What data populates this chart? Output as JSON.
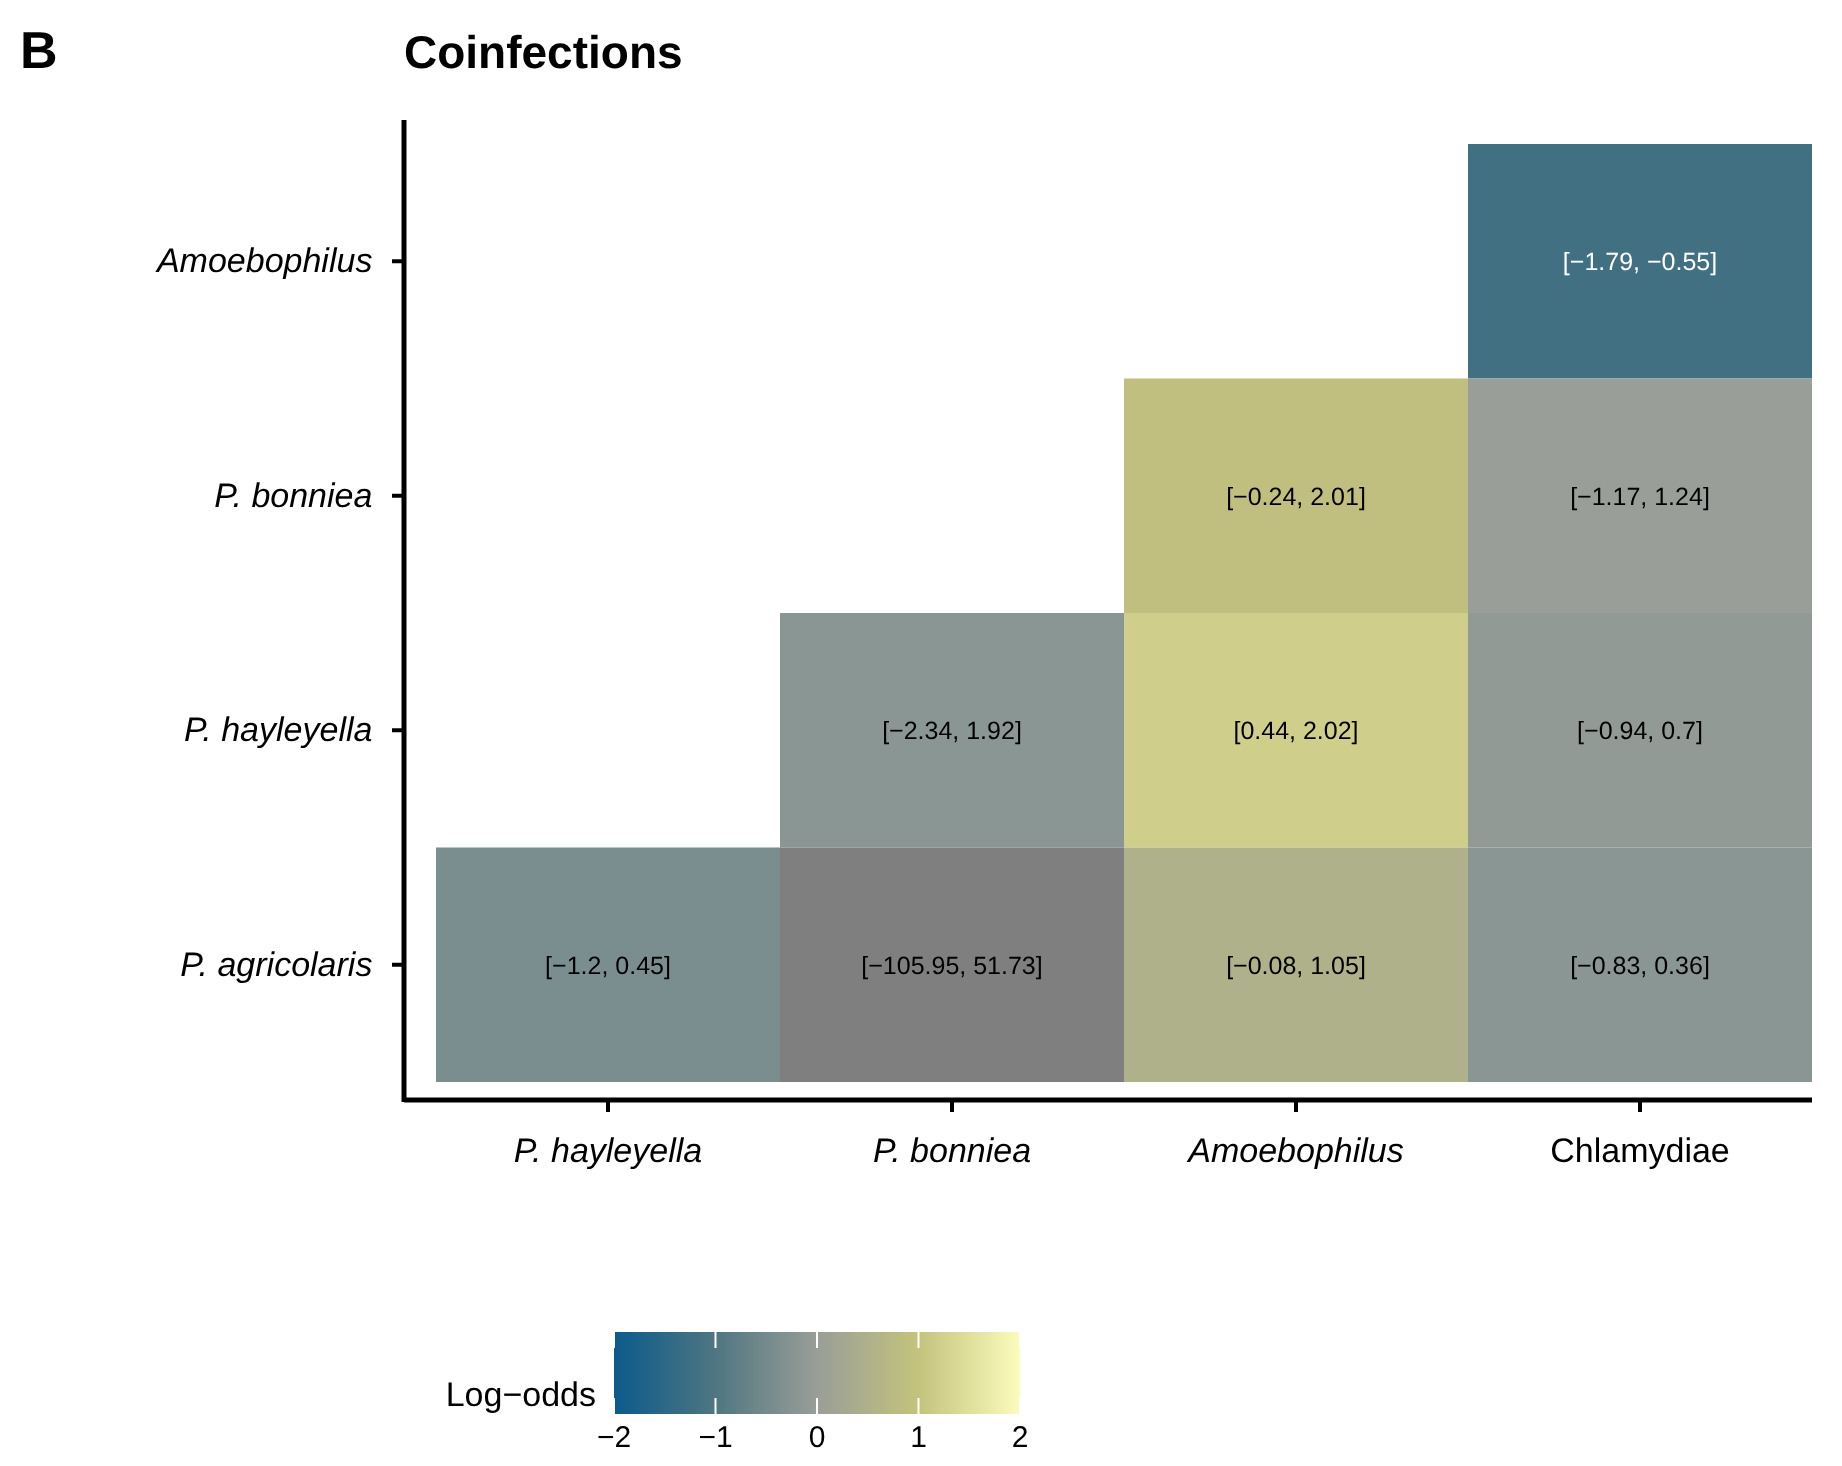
{
  "chart_data": {
    "type": "heatmap",
    "title": "Coinfections",
    "annotations": [
      "B"
    ],
    "categories": [
      "P. hayleyella",
      "P. bonniea",
      "Amoebophilus",
      "Chlamydiae"
    ],
    "y_categories": [
      "Amoebophilus",
      "P. bonniea",
      "P. hayleyella",
      "P. agricolaris"
    ],
    "cells": [
      [
        null,
        null,
        null,
        -1.2
      ],
      [
        null,
        null,
        0.9,
        0.0
      ],
      [
        null,
        -0.2,
        1.2,
        -0.1
      ],
      [
        -0.4,
        null,
        0.5,
        -0.2
      ]
    ],
    "cell_labels": [
      [
        null,
        null,
        null,
        "[−1.79, −0.55]"
      ],
      [
        null,
        null,
        "[−0.24, 2.01]",
        "[−1.17, 1.24]"
      ],
      [
        null,
        "[−2.34, 1.92]",
        "[0.44, 2.02]",
        "[−0.94, 0.7]"
      ],
      [
        "[−1.2, 0.45]",
        "[−105.95, 51.73]",
        "[−0.08, 1.05]",
        "[−0.83, 0.36]"
      ]
    ],
    "clabel": "Log−odds",
    "clim": [
      -2,
      2
    ],
    "cticks": [
      {
        "value": -2,
        "label": "−2"
      },
      {
        "value": -1,
        "label": "−1"
      },
      0,
      1,
      2
    ]
  }
}
